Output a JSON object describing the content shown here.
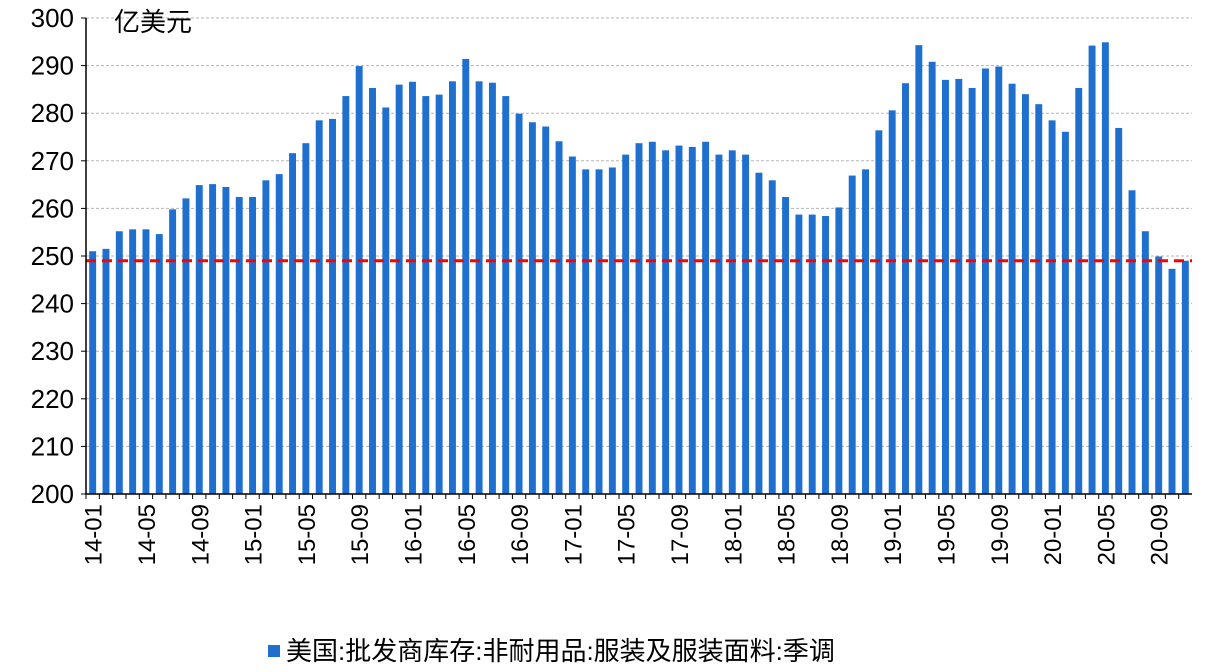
{
  "chart_data": {
    "type": "bar",
    "unit_label": "亿美元",
    "ylim": [
      200,
      300
    ],
    "yticks": [
      200,
      210,
      220,
      230,
      240,
      250,
      260,
      270,
      280,
      290,
      300
    ],
    "grid": true,
    "reference_line": {
      "value": 249,
      "style": "dashed",
      "color": "#ff0000"
    },
    "categories": [
      "14-01",
      "14-02",
      "14-03",
      "14-04",
      "14-05",
      "14-06",
      "14-07",
      "14-08",
      "14-09",
      "14-10",
      "14-11",
      "14-12",
      "15-01",
      "15-02",
      "15-03",
      "15-04",
      "15-05",
      "15-06",
      "15-07",
      "15-08",
      "15-09",
      "15-10",
      "15-11",
      "15-12",
      "16-01",
      "16-02",
      "16-03",
      "16-04",
      "16-05",
      "16-06",
      "16-07",
      "16-08",
      "16-09",
      "16-10",
      "16-11",
      "16-12",
      "17-01",
      "17-02",
      "17-03",
      "17-04",
      "17-05",
      "17-06",
      "17-07",
      "17-08",
      "17-09",
      "17-10",
      "17-11",
      "17-12",
      "18-01",
      "18-02",
      "18-03",
      "18-04",
      "18-05",
      "18-06",
      "18-07",
      "18-08",
      "18-09",
      "18-10",
      "18-11",
      "18-12",
      "19-01",
      "19-02",
      "19-03",
      "19-04",
      "19-05",
      "19-06",
      "19-07",
      "19-08",
      "19-09",
      "19-10",
      "19-11",
      "19-12",
      "20-01",
      "20-02",
      "20-03",
      "20-04",
      "20-05",
      "20-06",
      "20-07",
      "20-08",
      "20-09",
      "20-10",
      "20-11"
    ],
    "xtick_labels": [
      "14-01",
      "14-05",
      "14-09",
      "15-01",
      "15-05",
      "15-09",
      "16-01",
      "16-05",
      "16-09",
      "17-01",
      "17-05",
      "17-09",
      "18-01",
      "18-05",
      "18-09",
      "19-01",
      "19-05",
      "19-09",
      "20-01",
      "20-05",
      "20-09"
    ],
    "series": [
      {
        "name": "美国:批发商库存:非耐用品:服装及服装面料:季调",
        "color": "#1f6fcf",
        "values": [
          251,
          251.5,
          255.2,
          255.6,
          255.6,
          254.6,
          259.8,
          262.1,
          264.9,
          265.1,
          264.5,
          262.4,
          262.4,
          265.9,
          267.2,
          271.6,
          273.7,
          278.5,
          278.8,
          283.6,
          289.9,
          285.3,
          281.2,
          286,
          286.6,
          283.6,
          283.9,
          286.7,
          291.4,
          286.7,
          286.4,
          283.6,
          279.9,
          278.1,
          277.2,
          274.1,
          270.9,
          268.2,
          268.2,
          268.6,
          271.3,
          273.7,
          274,
          272.2,
          273.2,
          272.9,
          274,
          271.3,
          272.2,
          271.3,
          267.5,
          265.9,
          262.4,
          258.7,
          258.7,
          258.4,
          260.2,
          266.9,
          268.2,
          276.4,
          280.6,
          286.3,
          294.3,
          290.8,
          287,
          287.2,
          285.3,
          289.4,
          289.8,
          286.2,
          284,
          281.9,
          278.5,
          276.1,
          285.3,
          294.2,
          294.9,
          276.9,
          263.8,
          255.2,
          249.9,
          247.3,
          249
        ]
      }
    ],
    "legend": {
      "position": "bottom-center"
    }
  }
}
